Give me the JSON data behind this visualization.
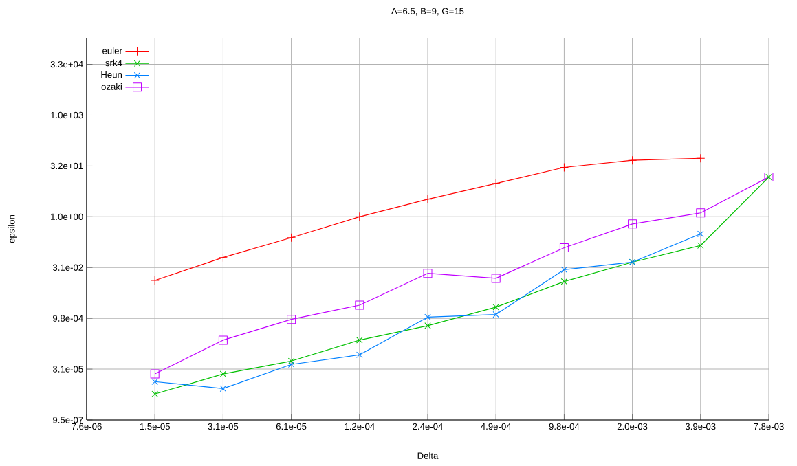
{
  "chart_data": {
    "type": "line",
    "title": "A=6.5, B=9, G=15",
    "xlabel": "Delta",
    "ylabel": "epsilon",
    "log": "xy",
    "grid": true,
    "legend": "top left",
    "x": [
      1.52587890625e-05,
      3.0517578125e-05,
      6.103515625e-05,
      0.0001220703125,
      0.000244140625,
      0.00048828125,
      0.0009765625,
      0.001953125,
      0.00390625,
      0.0078125
    ],
    "xlim": [
      7.62939453125e-06,
      0.0078125
    ],
    "xticks": [
      {
        "value": 7.62939453125e-06,
        "label": "7.6e-06"
      },
      {
        "value": 1.52587890625e-05,
        "label": "1.5e-05"
      },
      {
        "value": 3.0517578125e-05,
        "label": "3.1e-05"
      },
      {
        "value": 6.103515625e-05,
        "label": "6.1e-05"
      },
      {
        "value": 0.0001220703125,
        "label": "1.2e-04"
      },
      {
        "value": 0.000244140625,
        "label": "2.4e-04"
      },
      {
        "value": 0.00048828125,
        "label": "4.9e-04"
      },
      {
        "value": 0.0009765625,
        "label": "9.8e-04"
      },
      {
        "value": 0.001953125,
        "label": "2.0e-03"
      },
      {
        "value": 0.00390625,
        "label": "3.9e-03"
      },
      {
        "value": 0.0078125,
        "label": "7.8e-03"
      }
    ],
    "ylim": [
      9.5367431640625e-07,
      200000
    ],
    "yticks": [
      {
        "value": 9.5367431640625e-07,
        "label": "9.5e-07"
      },
      {
        "value": 3.0517578125e-05,
        "label": "3.1e-05"
      },
      {
        "value": 0.0009765625,
        "label": "9.8e-04"
      },
      {
        "value": 0.03125,
        "label": "3.1e-02"
      },
      {
        "value": 1,
        "label": "1.0e+00"
      },
      {
        "value": 32,
        "label": "3.2e+01"
      },
      {
        "value": 1024,
        "label": "1.0e+03"
      },
      {
        "value": 32768,
        "label": "3.3e+04"
      }
    ],
    "series": [
      {
        "name": "euler",
        "color": "#ff0000",
        "marker": "plus",
        "values": [
          0.013,
          0.062,
          0.24,
          1.0,
          3.3,
          9.7,
          29,
          47,
          54,
          null
        ]
      },
      {
        "name": "srk4",
        "color": "#00c000",
        "marker": "cross",
        "values": [
          5.6e-06,
          2.2e-05,
          5.3e-05,
          0.00022,
          0.00059,
          0.0021,
          0.012,
          0.045,
          0.14,
          15
        ]
      },
      {
        "name": "Heun",
        "color": "#0080ff",
        "marker": "cross",
        "values": [
          1.3e-05,
          8.1e-06,
          4.2e-05,
          8.1e-05,
          0.00106,
          0.00127,
          0.027,
          0.045,
          0.31,
          null
        ]
      },
      {
        "name": "ozaki",
        "color": "#c000ff",
        "marker": "square",
        "values": [
          2.2e-05,
          0.00022,
          0.00091,
          0.0024,
          0.021,
          0.015,
          0.12,
          0.61,
          1.3,
          15
        ]
      }
    ]
  }
}
